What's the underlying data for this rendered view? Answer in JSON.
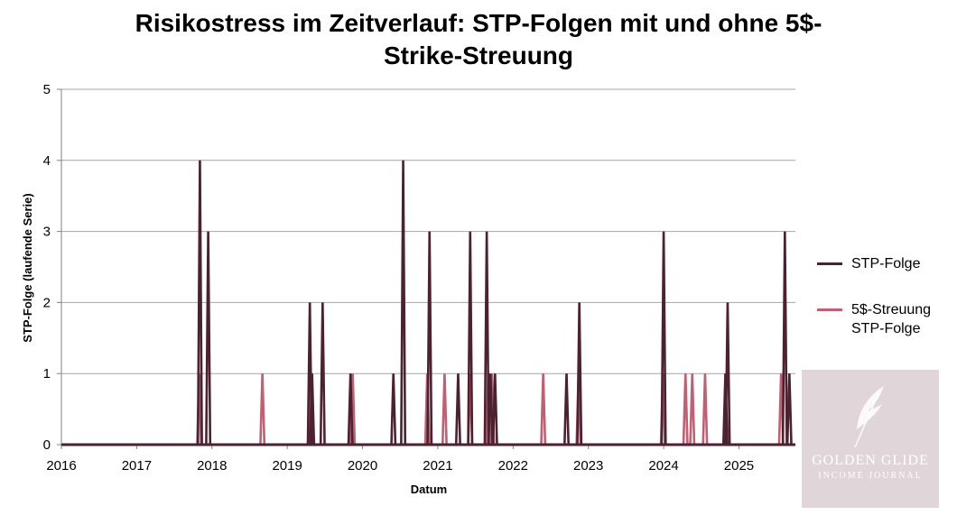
{
  "chart_data": {
    "type": "line",
    "title": "Risikostress im Zeitverlauf: STP-Folgen mit und ohne 5$-Strike-Streuung",
    "title_lines": [
      "Risikostress im Zeitverlauf: STP-Folgen mit und ohne 5$-",
      "Strike-Streuung"
    ],
    "xlabel": "Datum",
    "ylabel": "STP-Folge (laufende Serie)",
    "xlim": [
      2016.0,
      2025.75
    ],
    "ylim": [
      0,
      5
    ],
    "x_ticks": [
      2016,
      2017,
      2018,
      2019,
      2020,
      2021,
      2022,
      2023,
      2024,
      2025
    ],
    "y_ticks": [
      0,
      1,
      2,
      3,
      4,
      5
    ],
    "grid": "horizontal",
    "legend_position": "right",
    "series": [
      {
        "name": "STP-Folge",
        "color": "#4d2230",
        "spikes": [
          {
            "x": 2017.84,
            "y": 4
          },
          {
            "x": 2017.95,
            "y": 3
          },
          {
            "x": 2019.3,
            "y": 2
          },
          {
            "x": 2019.33,
            "y": 1
          },
          {
            "x": 2019.47,
            "y": 2
          },
          {
            "x": 2019.84,
            "y": 1
          },
          {
            "x": 2020.41,
            "y": 1
          },
          {
            "x": 2020.54,
            "y": 4
          },
          {
            "x": 2020.89,
            "y": 3
          },
          {
            "x": 2021.27,
            "y": 1
          },
          {
            "x": 2021.43,
            "y": 3
          },
          {
            "x": 2021.65,
            "y": 3
          },
          {
            "x": 2021.7,
            "y": 1
          },
          {
            "x": 2021.76,
            "y": 1
          },
          {
            "x": 2022.71,
            "y": 1
          },
          {
            "x": 2022.88,
            "y": 2
          },
          {
            "x": 2024.0,
            "y": 3
          },
          {
            "x": 2024.82,
            "y": 1
          },
          {
            "x": 2024.85,
            "y": 2
          },
          {
            "x": 2025.61,
            "y": 3
          },
          {
            "x": 2025.67,
            "y": 1
          }
        ]
      },
      {
        "name": "5$-Streuung STP-Folge",
        "name_lines": [
          "5$-Streuung",
          "STP-Folge"
        ],
        "color": "#c06072",
        "spikes": [
          {
            "x": 2017.83,
            "y": 1
          },
          {
            "x": 2018.67,
            "y": 1
          },
          {
            "x": 2019.32,
            "y": 1
          },
          {
            "x": 2019.87,
            "y": 1
          },
          {
            "x": 2020.86,
            "y": 1
          },
          {
            "x": 2021.09,
            "y": 1
          },
          {
            "x": 2021.43,
            "y": 1
          },
          {
            "x": 2021.67,
            "y": 1
          },
          {
            "x": 2021.72,
            "y": 1
          },
          {
            "x": 2022.4,
            "y": 1
          },
          {
            "x": 2022.87,
            "y": 1
          },
          {
            "x": 2023.99,
            "y": 1
          },
          {
            "x": 2024.29,
            "y": 1
          },
          {
            "x": 2024.38,
            "y": 1
          },
          {
            "x": 2024.55,
            "y": 1
          },
          {
            "x": 2025.56,
            "y": 1
          }
        ]
      }
    ]
  },
  "watermark": {
    "line1": "GOLDEN GLIDE",
    "line2": "INCOME JOURNAL",
    "background": "#e0d5d8"
  }
}
